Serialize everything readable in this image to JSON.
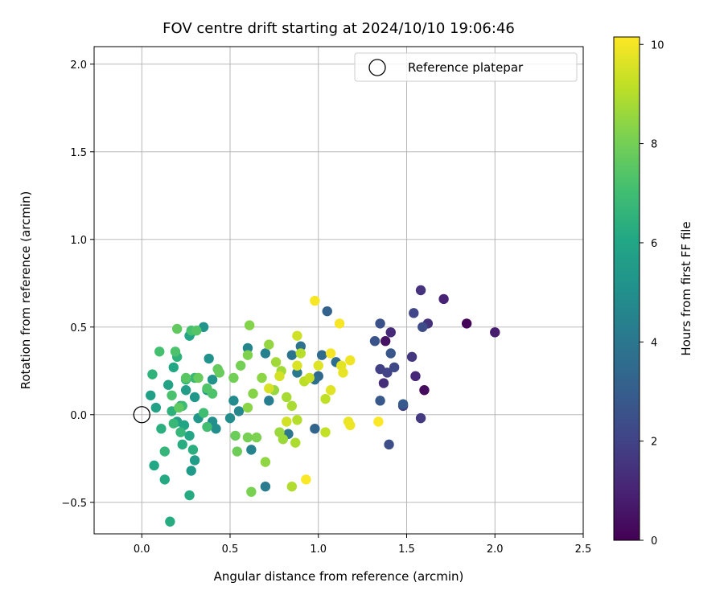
{
  "chart_data": {
    "type": "scatter",
    "title": "FOV centre drift starting at 2024/10/10 19:06:46",
    "xlabel": "Angular distance from reference (arcmin)",
    "ylabel": "Rotation from reference (arcmin)",
    "xlim": [
      -0.27,
      2.5
    ],
    "ylim": [
      -0.68,
      2.1
    ],
    "xticks": [
      0.0,
      0.5,
      1.0,
      1.5,
      2.0,
      2.5
    ],
    "xtick_labels": [
      "0.0",
      "0.5",
      "1.0",
      "1.5",
      "2.0",
      "2.5"
    ],
    "yticks": [
      -0.5,
      0.0,
      0.5,
      1.0,
      1.5,
      2.0
    ],
    "ytick_labels": [
      "−0.5",
      "0.0",
      "0.5",
      "1.0",
      "1.5",
      "2.0"
    ],
    "grid": true,
    "legend": {
      "placement": "top-right",
      "entries": [
        "Reference platepar"
      ]
    },
    "reference_point": {
      "x": 0.0,
      "y": 0.0,
      "marker": "open-circle",
      "color": "#000000"
    },
    "colorbar": {
      "label": "Hours from first FF file",
      "range": [
        0,
        10.15
      ],
      "ticks": [
        0,
        2,
        4,
        6,
        8,
        10
      ],
      "tick_labels": [
        "0",
        "2",
        "4",
        "6",
        "8",
        "10"
      ],
      "colormap": "viridis"
    },
    "points": [
      {
        "x": 1.84,
        "y": 0.52,
        "h": 0.1
      },
      {
        "x": 1.6,
        "y": 0.14,
        "h": 0.3
      },
      {
        "x": 1.38,
        "y": 0.42,
        "h": 0.5
      },
      {
        "x": 2.0,
        "y": 0.47,
        "h": 0.8
      },
      {
        "x": 1.71,
        "y": 0.66,
        "h": 1.0
      },
      {
        "x": 1.55,
        "y": 0.22,
        "h": 1.1
      },
      {
        "x": 1.41,
        "y": 0.47,
        "h": 1.2
      },
      {
        "x": 1.37,
        "y": 0.18,
        "h": 1.3
      },
      {
        "x": 1.62,
        "y": 0.52,
        "h": 1.4
      },
      {
        "x": 1.58,
        "y": 0.71,
        "h": 1.5
      },
      {
        "x": 1.53,
        "y": 0.33,
        "h": 1.6
      },
      {
        "x": 1.58,
        "y": -0.02,
        "h": 1.7
      },
      {
        "x": 1.48,
        "y": 0.05,
        "h": 1.8
      },
      {
        "x": 1.35,
        "y": 0.26,
        "h": 1.9
      },
      {
        "x": 1.39,
        "y": 0.24,
        "h": 2.0
      },
      {
        "x": 1.54,
        "y": 0.58,
        "h": 2.1
      },
      {
        "x": 1.43,
        "y": 0.27,
        "h": 2.2
      },
      {
        "x": 1.59,
        "y": 0.5,
        "h": 2.3
      },
      {
        "x": 1.4,
        "y": -0.17,
        "h": 2.4
      },
      {
        "x": 1.35,
        "y": 0.52,
        "h": 2.5
      },
      {
        "x": 1.32,
        "y": 0.42,
        "h": 2.6
      },
      {
        "x": 1.41,
        "y": 0.35,
        "h": 2.7
      },
      {
        "x": 1.35,
        "y": 0.08,
        "h": 2.8
      },
      {
        "x": 1.48,
        "y": 0.06,
        "h": 2.9
      },
      {
        "x": 1.05,
        "y": 0.59,
        "h": 3.2
      },
      {
        "x": 0.98,
        "y": -0.08,
        "h": 3.3
      },
      {
        "x": 1.0,
        "y": 0.22,
        "h": 3.4
      },
      {
        "x": 1.02,
        "y": 0.34,
        "h": 3.5
      },
      {
        "x": 1.1,
        "y": 0.3,
        "h": 3.6
      },
      {
        "x": 0.98,
        "y": 0.2,
        "h": 3.7
      },
      {
        "x": 0.9,
        "y": 0.39,
        "h": 3.8
      },
      {
        "x": 0.85,
        "y": 0.34,
        "h": 3.9
      },
      {
        "x": 0.83,
        "y": -0.11,
        "h": 4.0
      },
      {
        "x": 0.88,
        "y": 0.24,
        "h": 4.1
      },
      {
        "x": 0.7,
        "y": -0.41,
        "h": 4.2
      },
      {
        "x": 0.72,
        "y": 0.08,
        "h": 4.3
      },
      {
        "x": 0.7,
        "y": 0.35,
        "h": 4.4
      },
      {
        "x": 0.62,
        "y": -0.2,
        "h": 4.5
      },
      {
        "x": 0.6,
        "y": 0.38,
        "h": 4.6
      },
      {
        "x": 0.55,
        "y": 0.02,
        "h": 4.7
      },
      {
        "x": 0.52,
        "y": 0.08,
        "h": 4.8
      },
      {
        "x": 0.5,
        "y": -0.02,
        "h": 4.9
      },
      {
        "x": 0.42,
        "y": -0.08,
        "h": 5.0
      },
      {
        "x": 0.4,
        "y": -0.04,
        "h": 5.05
      },
      {
        "x": 0.38,
        "y": 0.32,
        "h": 5.1
      },
      {
        "x": 0.4,
        "y": 0.2,
        "h": 5.15
      },
      {
        "x": 0.35,
        "y": 0.5,
        "h": 5.2
      },
      {
        "x": 0.28,
        "y": 0.47,
        "h": 5.3
      },
      {
        "x": 0.3,
        "y": 0.1,
        "h": 5.35
      },
      {
        "x": 0.32,
        "y": -0.02,
        "h": 5.4
      },
      {
        "x": 0.37,
        "y": 0.14,
        "h": 5.45
      },
      {
        "x": 0.28,
        "y": -0.32,
        "h": 5.5
      },
      {
        "x": 0.3,
        "y": -0.26,
        "h": 5.55
      },
      {
        "x": 0.25,
        "y": 0.14,
        "h": 5.6
      },
      {
        "x": 0.22,
        "y": 0.05,
        "h": 5.65
      },
      {
        "x": 0.2,
        "y": -0.04,
        "h": 5.7
      },
      {
        "x": 0.05,
        "y": 0.11,
        "h": 5.75
      },
      {
        "x": 0.08,
        "y": 0.04,
        "h": 5.8
      },
      {
        "x": 0.15,
        "y": 0.17,
        "h": 5.85
      },
      {
        "x": 0.27,
        "y": 0.45,
        "h": 5.9
      },
      {
        "x": 0.24,
        "y": -0.06,
        "h": 5.95
      },
      {
        "x": 0.27,
        "y": -0.12,
        "h": 6.0
      },
      {
        "x": 0.18,
        "y": 0.27,
        "h": 6.05
      },
      {
        "x": 0.07,
        "y": -0.29,
        "h": 6.1
      },
      {
        "x": 0.13,
        "y": -0.37,
        "h": 6.15
      },
      {
        "x": 0.27,
        "y": -0.46,
        "h": 6.2
      },
      {
        "x": 0.16,
        "y": -0.61,
        "h": 6.25
      },
      {
        "x": 0.23,
        "y": -0.17,
        "h": 6.3
      },
      {
        "x": 0.29,
        "y": -0.2,
        "h": 6.35
      },
      {
        "x": 0.11,
        "y": -0.08,
        "h": 6.4
      },
      {
        "x": 0.17,
        "y": 0.02,
        "h": 6.45
      },
      {
        "x": 0.2,
        "y": 0.33,
        "h": 6.5
      },
      {
        "x": 0.06,
        "y": 0.23,
        "h": 6.55
      },
      {
        "x": 0.25,
        "y": 0.2,
        "h": 6.6
      },
      {
        "x": 0.13,
        "y": -0.21,
        "h": 6.65
      },
      {
        "x": 0.22,
        "y": -0.1,
        "h": 6.7
      },
      {
        "x": 0.18,
        "y": -0.05,
        "h": 6.75
      },
      {
        "x": 0.3,
        "y": 0.21,
        "h": 6.8
      },
      {
        "x": 0.23,
        "y": 0.05,
        "h": 6.9
      },
      {
        "x": 0.35,
        "y": 0.01,
        "h": 7.0
      },
      {
        "x": 0.37,
        "y": -0.07,
        "h": 7.05
      },
      {
        "x": 0.1,
        "y": 0.36,
        "h": 7.1
      },
      {
        "x": 0.28,
        "y": 0.48,
        "h": 7.15
      },
      {
        "x": 0.17,
        "y": 0.11,
        "h": 7.2
      },
      {
        "x": 0.19,
        "y": 0.36,
        "h": 7.25
      },
      {
        "x": 0.4,
        "y": 0.12,
        "h": 7.3
      },
      {
        "x": 0.37,
        "y": 0.15,
        "h": 7.35
      },
      {
        "x": 0.31,
        "y": 0.48,
        "h": 7.4
      },
      {
        "x": 0.25,
        "y": 0.21,
        "h": 7.5
      },
      {
        "x": 0.21,
        "y": 0.04,
        "h": 7.6
      },
      {
        "x": 0.2,
        "y": 0.49,
        "h": 7.65
      },
      {
        "x": 0.43,
        "y": 0.26,
        "h": 7.7
      },
      {
        "x": 0.32,
        "y": 0.21,
        "h": 7.75
      },
      {
        "x": 0.44,
        "y": 0.24,
        "h": 7.8
      },
      {
        "x": 0.53,
        "y": -0.12,
        "h": 7.85
      },
      {
        "x": 0.54,
        "y": -0.21,
        "h": 7.9
      },
      {
        "x": 0.52,
        "y": 0.21,
        "h": 7.95
      },
      {
        "x": 0.56,
        "y": 0.28,
        "h": 8.0
      },
      {
        "x": 0.6,
        "y": -0.13,
        "h": 8.05
      },
      {
        "x": 0.62,
        "y": -0.44,
        "h": 8.1
      },
      {
        "x": 0.65,
        "y": -0.13,
        "h": 8.15
      },
      {
        "x": 0.6,
        "y": 0.34,
        "h": 8.2
      },
      {
        "x": 0.61,
        "y": 0.51,
        "h": 8.25
      },
      {
        "x": 0.63,
        "y": 0.12,
        "h": 8.3
      },
      {
        "x": 0.6,
        "y": 0.04,
        "h": 8.35
      },
      {
        "x": 0.68,
        "y": 0.21,
        "h": 8.4
      },
      {
        "x": 0.7,
        "y": -0.27,
        "h": 8.45
      },
      {
        "x": 0.72,
        "y": 0.4,
        "h": 8.5
      },
      {
        "x": 0.75,
        "y": 0.14,
        "h": 8.55
      },
      {
        "x": 0.78,
        "y": -0.1,
        "h": 8.6
      },
      {
        "x": 0.8,
        "y": -0.14,
        "h": 8.65
      },
      {
        "x": 0.76,
        "y": 0.3,
        "h": 8.7
      },
      {
        "x": 0.79,
        "y": 0.25,
        "h": 8.75
      },
      {
        "x": 0.82,
        "y": 0.1,
        "h": 8.8
      },
      {
        "x": 0.85,
        "y": 0.05,
        "h": 8.85
      },
      {
        "x": 0.87,
        "y": -0.16,
        "h": 8.9
      },
      {
        "x": 0.85,
        "y": -0.41,
        "h": 8.95
      },
      {
        "x": 0.88,
        "y": -0.03,
        "h": 9.0
      },
      {
        "x": 0.9,
        "y": 0.35,
        "h": 9.05
      },
      {
        "x": 0.92,
        "y": 0.19,
        "h": 9.1
      },
      {
        "x": 1.04,
        "y": 0.09,
        "h": 9.15
      },
      {
        "x": 1.04,
        "y": -0.1,
        "h": 9.2
      },
      {
        "x": 0.95,
        "y": 0.21,
        "h": 9.3
      },
      {
        "x": 0.88,
        "y": 0.45,
        "h": 9.4
      },
      {
        "x": 0.82,
        "y": -0.04,
        "h": 9.45
      },
      {
        "x": 0.78,
        "y": 0.22,
        "h": 9.5
      },
      {
        "x": 0.72,
        "y": 0.15,
        "h": 9.55
      },
      {
        "x": 0.88,
        "y": 0.28,
        "h": 9.6
      },
      {
        "x": 1.0,
        "y": 0.28,
        "h": 9.65
      },
      {
        "x": 1.07,
        "y": 0.14,
        "h": 9.7
      },
      {
        "x": 1.13,
        "y": 0.28,
        "h": 9.75
      },
      {
        "x": 1.14,
        "y": 0.24,
        "h": 9.8
      },
      {
        "x": 1.17,
        "y": -0.04,
        "h": 9.85
      },
      {
        "x": 1.18,
        "y": -0.06,
        "h": 9.9
      },
      {
        "x": 1.18,
        "y": 0.31,
        "h": 9.95
      },
      {
        "x": 1.07,
        "y": 0.35,
        "h": 10.0
      },
      {
        "x": 0.98,
        "y": 0.65,
        "h": 10.05
      },
      {
        "x": 1.12,
        "y": 0.52,
        "h": 10.05
      },
      {
        "x": 0.93,
        "y": -0.37,
        "h": 10.1
      },
      {
        "x": 1.34,
        "y": -0.04,
        "h": 10.1
      }
    ]
  }
}
